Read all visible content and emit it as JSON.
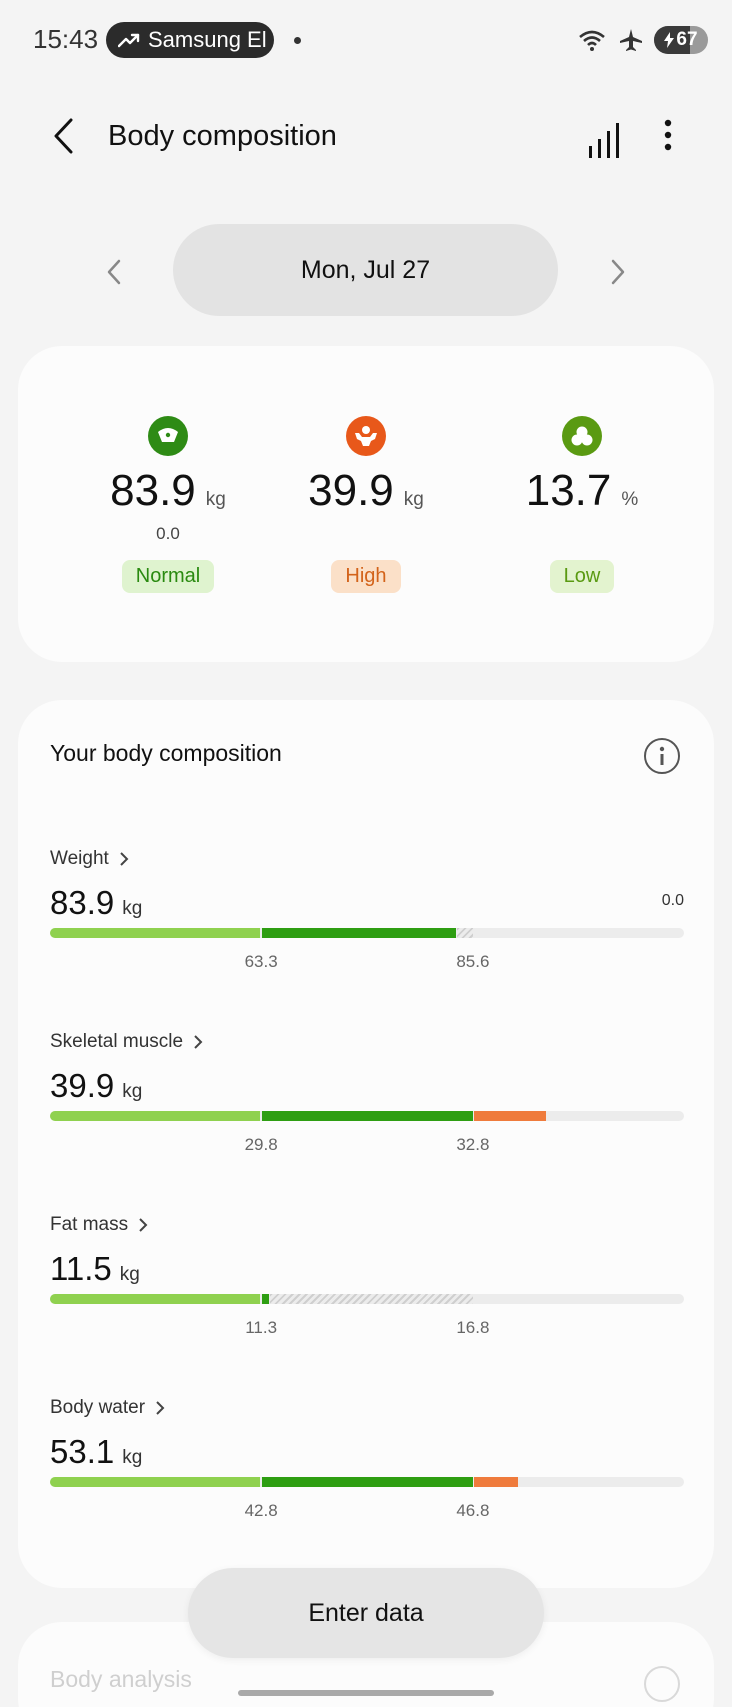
{
  "status_bar": {
    "time": "15:43",
    "notification_label": "Samsung El",
    "battery": "67",
    "battery_level": 0.67
  },
  "header": {
    "title": "Body composition"
  },
  "date_selector": {
    "date": "Mon, Jul 27"
  },
  "summary": {
    "metrics": [
      {
        "value": "83.9",
        "unit": "kg",
        "sub": "0.0",
        "status": "Normal",
        "icon": "weight-scale-icon",
        "color": "#2e8b15"
      },
      {
        "value": "39.9",
        "unit": "kg",
        "sub": "",
        "status": "High",
        "icon": "muscle-icon",
        "color": "#e8581a"
      },
      {
        "value": "13.7",
        "unit": "%",
        "sub": "",
        "status": "Low",
        "icon": "body-fat-icon",
        "color": "#5a9a12"
      }
    ]
  },
  "composition": {
    "title": "Your body composition",
    "rows": [
      {
        "label": "Weight",
        "value": "83.9",
        "unit": "kg",
        "extra": "0.0",
        "tick1": "63.3",
        "tick2": "85.6",
        "zone_low": 0.333,
        "zone_high": 0.667,
        "fill": 0.64,
        "fill_color": "#2e9e12",
        "hatch_to": 0.667
      },
      {
        "label": "Skeletal muscle",
        "value": "39.9",
        "unit": "kg",
        "extra": "",
        "tick1": "29.8",
        "tick2": "32.8",
        "zone_low": 0.333,
        "zone_high": 0.667,
        "fill": 0.783,
        "fill_color": "#ef7b3c",
        "hatch_to": 0
      },
      {
        "label": "Fat mass",
        "value": "11.5",
        "unit": "kg",
        "extra": "",
        "tick1": "11.3",
        "tick2": "16.8",
        "zone_low": 0.333,
        "zone_high": 0.667,
        "fill": 0.345,
        "fill_color": "#2e9e12",
        "hatch_to": 0.667
      },
      {
        "label": "Body water",
        "value": "53.1",
        "unit": "kg",
        "extra": "",
        "tick1": "42.8",
        "tick2": "46.8",
        "zone_low": 0.333,
        "zone_high": 0.667,
        "fill": 0.738,
        "fill_color": "#ef7b3c",
        "hatch_to": 0
      }
    ]
  },
  "actions": {
    "enter_data": "Enter data"
  },
  "next_section": {
    "title": "Body analysis"
  },
  "colors": {
    "light_green": "#8fd14f",
    "dark_green": "#2e9e12",
    "orange": "#ef7b3c",
    "track": "#ececec"
  }
}
